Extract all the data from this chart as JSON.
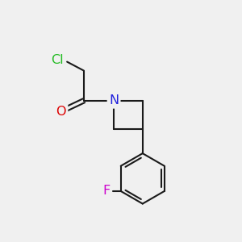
{
  "background_color": "#f0f0f0",
  "bond_color": "#1a1a1a",
  "bond_width": 1.5,
  "atom_colors": {
    "Cl": "#22bb22",
    "O": "#dd0000",
    "N": "#2222dd",
    "F": "#cc00cc"
  },
  "font_size_atom": 11.5
}
